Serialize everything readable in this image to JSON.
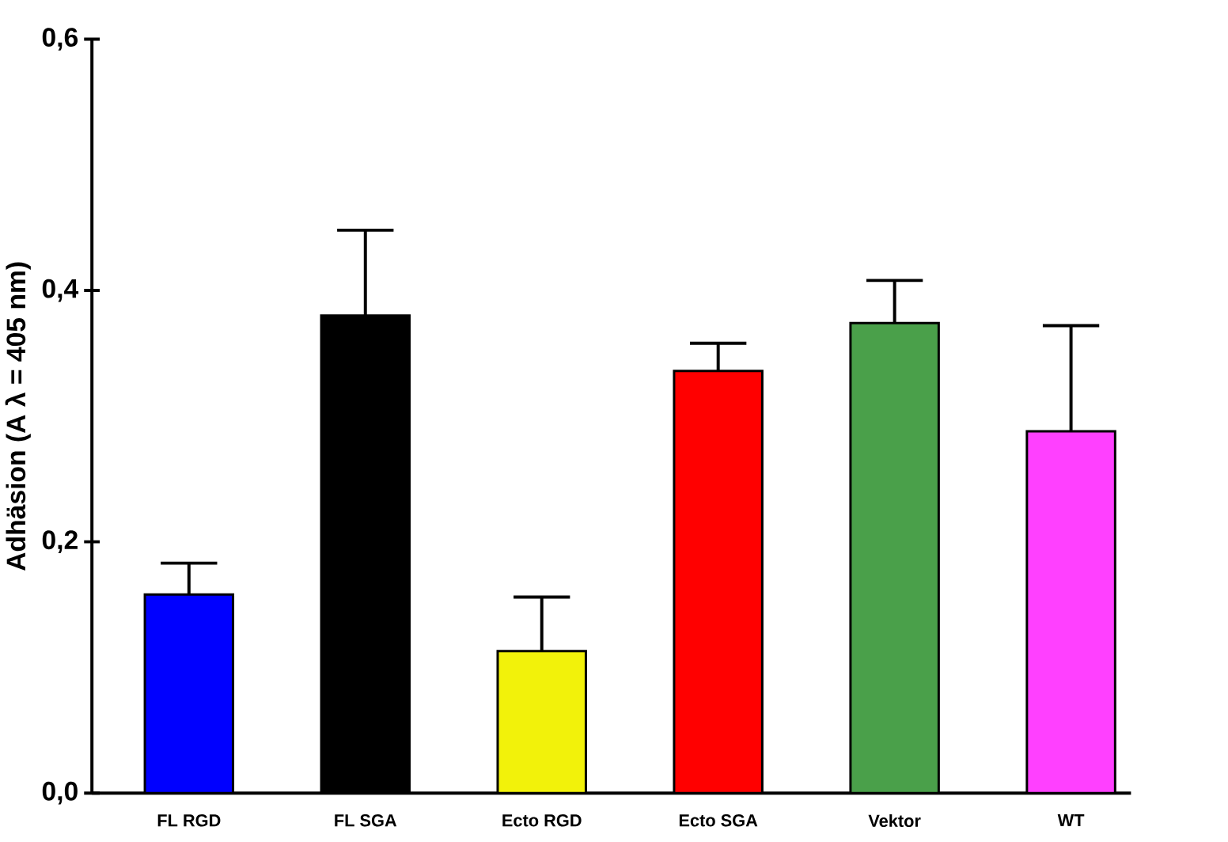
{
  "chart_data": {
    "type": "bar",
    "ylabel": "Adhäsion (A λ = 405 nm)",
    "categories": [
      "FL RGD",
      "FL SGA",
      "Ecto RGD",
      "Ecto SGA",
      "Vektor",
      "WT"
    ],
    "values": [
      0.158,
      0.38,
      0.113,
      0.336,
      0.374,
      0.288
    ],
    "colors": [
      "#0000ff",
      "#000000",
      "#f2f20a",
      "#ff0000",
      "#4aa04a",
      "#ff40ff"
    ],
    "errors": [
      [
        0.158,
        0.183
      ],
      [
        0.38,
        0.448
      ],
      [
        0.113,
        0.156
      ],
      [
        0.336,
        0.358
      ],
      [
        0.374,
        0.408
      ],
      [
        0.288,
        0.372
      ]
    ],
    "ylim": [
      0,
      0.6
    ],
    "yticks": [
      {
        "value": 0,
        "label": "0,0"
      },
      {
        "value": 0.2,
        "label": "0,2"
      },
      {
        "value": 0.4,
        "label": "0,4"
      },
      {
        "value": 0.6,
        "label": "0,6"
      }
    ]
  }
}
